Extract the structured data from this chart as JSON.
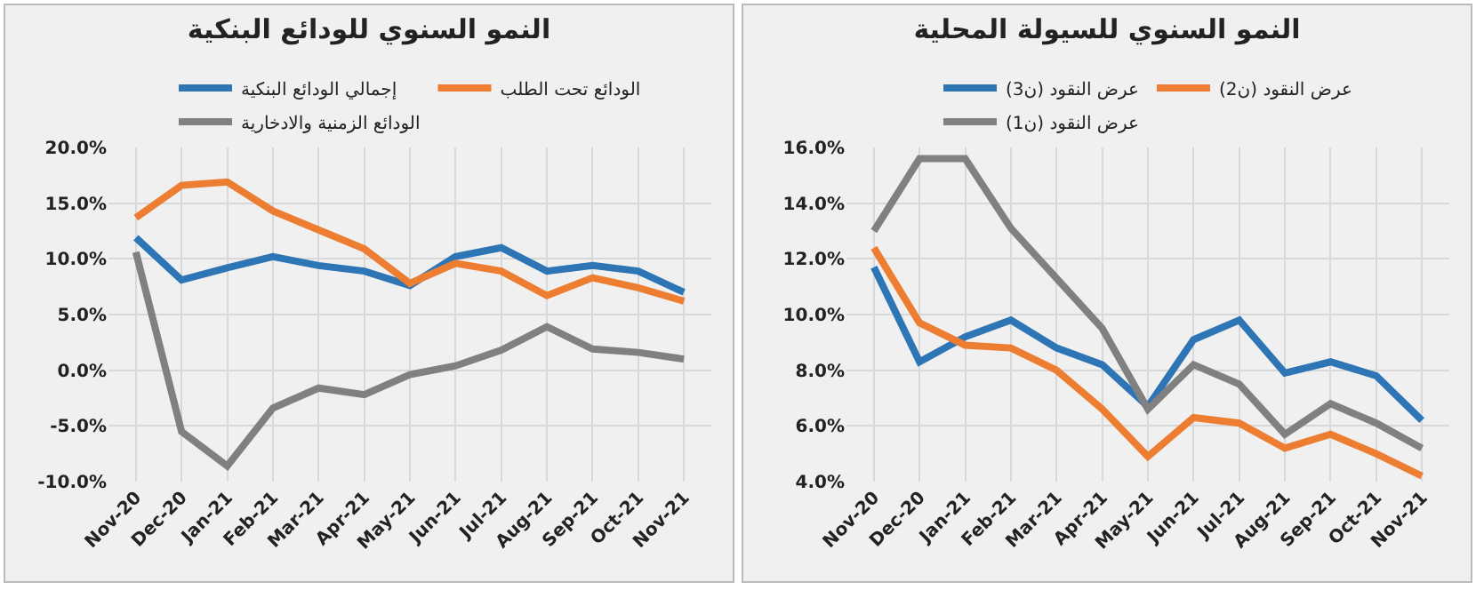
{
  "chart_data": [
    {
      "type": "line",
      "title": "النمو السنوي للودائع البنكية",
      "categories": [
        "Nov-20",
        "Dec-20",
        "Jan-21",
        "Feb-21",
        "Mar-21",
        "Apr-21",
        "May-21",
        "Jun-21",
        "Jul-21",
        "Aug-21",
        "Sep-21",
        "Oct-21",
        "Nov-21"
      ],
      "series": [
        {
          "name": "إجمالي الودائع البنكية",
          "color": "#2e75b6",
          "values": [
            11.9,
            8.1,
            9.2,
            10.2,
            9.4,
            8.9,
            7.6,
            10.2,
            11.0,
            8.9,
            9.4,
            8.9,
            7.0
          ]
        },
        {
          "name": "الودائع تحت الطلب",
          "color": "#ed7d31",
          "values": [
            13.7,
            16.6,
            16.9,
            14.3,
            12.6,
            10.9,
            7.8,
            9.6,
            8.9,
            6.7,
            8.3,
            7.4,
            6.2
          ]
        },
        {
          "name": "الودائع الزمنية والادخارية",
          "color": "#808080",
          "values": [
            10.6,
            -5.5,
            -8.6,
            -3.4,
            -1.6,
            -2.2,
            -0.4,
            0.4,
            1.8,
            3.9,
            1.9,
            1.6,
            1.0
          ]
        }
      ],
      "ylim": [
        -10,
        20
      ],
      "yticks": [
        {
          "value": -10,
          "label": "-10.0%"
        },
        {
          "value": -5,
          "label": "-5.0%"
        },
        {
          "value": 0,
          "label": "0.0%"
        },
        {
          "value": 5,
          "label": "5.0%"
        },
        {
          "value": 10,
          "label": "10.0%"
        },
        {
          "value": 15,
          "label": "15.0%"
        },
        {
          "value": 20,
          "label": "20.0%"
        }
      ],
      "grid": true,
      "legend": "top",
      "marker": "none",
      "line_style": "solid"
    },
    {
      "type": "line",
      "title": "النمو السنوي للسيولة المحلية",
      "categories": [
        "Nov-20",
        "Dec-20",
        "Jan-21",
        "Feb-21",
        "Mar-21",
        "Apr-21",
        "May-21",
        "Jun-21",
        "Jul-21",
        "Aug-21",
        "Sep-21",
        "Oct-21",
        "Nov-21"
      ],
      "series": [
        {
          "name": "عرض النقود (ن3)",
          "color": "#2e75b6",
          "values": [
            11.7,
            8.3,
            9.2,
            9.8,
            8.8,
            8.2,
            6.7,
            9.1,
            9.8,
            7.9,
            8.3,
            7.8,
            6.2
          ]
        },
        {
          "name": "عرض النقود (ن2)",
          "color": "#ed7d31",
          "values": [
            12.4,
            9.7,
            8.9,
            8.8,
            8.0,
            6.6,
            4.9,
            6.3,
            6.1,
            5.2,
            5.7,
            5.0,
            4.2
          ]
        },
        {
          "name": "عرض النقود (ن1)",
          "color": "#808080",
          "values": [
            13.0,
            15.6,
            15.6,
            13.1,
            11.3,
            9.5,
            6.6,
            8.2,
            7.5,
            5.7,
            6.8,
            6.1,
            5.2
          ]
        }
      ],
      "ylim": [
        4,
        16
      ],
      "yticks": [
        {
          "value": 4,
          "label": "4.0%"
        },
        {
          "value": 6,
          "label": "6.0%"
        },
        {
          "value": 8,
          "label": "8.0%"
        },
        {
          "value": 10,
          "label": "10.0%"
        },
        {
          "value": 12,
          "label": "12.0%"
        },
        {
          "value": 14,
          "label": "14.0%"
        },
        {
          "value": 16,
          "label": "16.0%"
        }
      ],
      "grid": true,
      "legend": "top",
      "marker": "none",
      "line_style": "solid"
    }
  ]
}
